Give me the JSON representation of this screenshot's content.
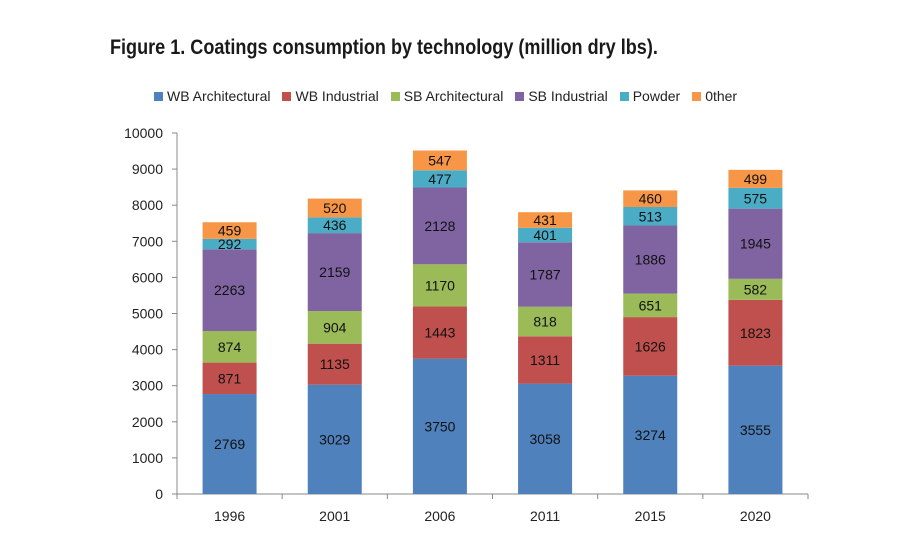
{
  "chart_data": {
    "type": "bar",
    "stacked": true,
    "title": "Figure 1. Coatings consumption by technology (million dry lbs).",
    "categories": [
      "1996",
      "2001",
      "2006",
      "2011",
      "2015",
      "2020"
    ],
    "ylim": [
      0,
      10000
    ],
    "yticks": [
      0,
      1000,
      2000,
      3000,
      4000,
      5000,
      6000,
      7000,
      8000,
      9000,
      10000
    ],
    "grid": false,
    "legend_position": "top",
    "series": [
      {
        "name": "WB Architectural",
        "color": "#4f81bd",
        "values": [
          2769,
          3029,
          3750,
          3058,
          3274,
          3555
        ]
      },
      {
        "name": "WB Industrial",
        "color": "#c0504d",
        "values": [
          871,
          1135,
          1443,
          1311,
          1626,
          1823
        ]
      },
      {
        "name": "SB Architectural",
        "color": "#9bbb59",
        "values": [
          874,
          904,
          1170,
          818,
          651,
          582
        ]
      },
      {
        "name": "SB Industrial",
        "color": "#8064a2",
        "values": [
          2263,
          2159,
          2128,
          1787,
          1886,
          1945
        ]
      },
      {
        "name": "Powder",
        "color": "#4bacc6",
        "values": [
          292,
          436,
          477,
          401,
          513,
          575
        ]
      },
      {
        "name": "0ther",
        "color": "#f79646",
        "values": [
          459,
          520,
          547,
          431,
          460,
          499
        ]
      }
    ]
  }
}
